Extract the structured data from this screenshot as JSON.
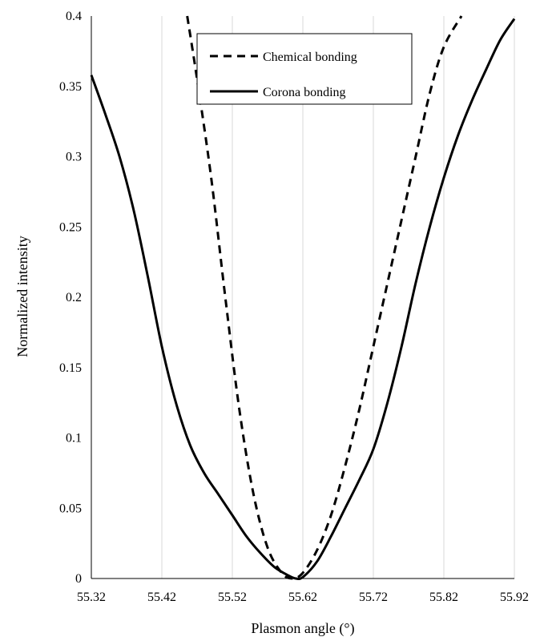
{
  "chart_data": {
    "type": "line",
    "title": "",
    "xlabel": "Plasmon angle (°)",
    "ylabel": "Normalized intensity",
    "xlim": [
      55.32,
      55.92
    ],
    "ylim": [
      0,
      0.4
    ],
    "x_ticks": [
      "55.32",
      "55.42",
      "55.52",
      "55.62",
      "55.72",
      "55.82",
      "55.92"
    ],
    "y_ticks": [
      "0",
      "0.05",
      "0.1",
      "0.15",
      "0.2",
      "0.25",
      "0.3",
      "0.35",
      "0.4"
    ],
    "grid": "vertical",
    "legend_position": "top-center",
    "series": [
      {
        "name": "Chemical bonding",
        "style": "dashed",
        "color": "#000000",
        "x": [
          55.456,
          55.47,
          55.49,
          55.51,
          55.53,
          55.55,
          55.57,
          55.59,
          55.605,
          55.62,
          55.64,
          55.66,
          55.68,
          55.7,
          55.72,
          55.74,
          55.76,
          55.78,
          55.8,
          55.82,
          55.845
        ],
        "y": [
          0.4,
          0.355,
          0.285,
          0.2,
          0.12,
          0.06,
          0.022,
          0.004,
          0.0,
          0.004,
          0.02,
          0.045,
          0.08,
          0.12,
          0.165,
          0.21,
          0.255,
          0.3,
          0.345,
          0.378,
          0.4
        ]
      },
      {
        "name": "Corona bonding",
        "style": "solid",
        "color": "#000000",
        "x": [
          55.32,
          55.34,
          55.36,
          55.38,
          55.4,
          55.42,
          55.44,
          55.46,
          55.48,
          55.5,
          55.52,
          55.54,
          55.56,
          55.58,
          55.6,
          55.61,
          55.62,
          55.64,
          55.66,
          55.68,
          55.7,
          55.72,
          55.74,
          55.76,
          55.78,
          55.8,
          55.82,
          55.84,
          55.86,
          55.88,
          55.9,
          55.92
        ],
        "y": [
          0.358,
          0.33,
          0.3,
          0.262,
          0.215,
          0.165,
          0.125,
          0.095,
          0.075,
          0.06,
          0.045,
          0.03,
          0.018,
          0.008,
          0.002,
          0.0,
          0.001,
          0.012,
          0.03,
          0.05,
          0.07,
          0.092,
          0.125,
          0.165,
          0.21,
          0.25,
          0.285,
          0.315,
          0.34,
          0.362,
          0.383,
          0.398
        ]
      }
    ]
  }
}
